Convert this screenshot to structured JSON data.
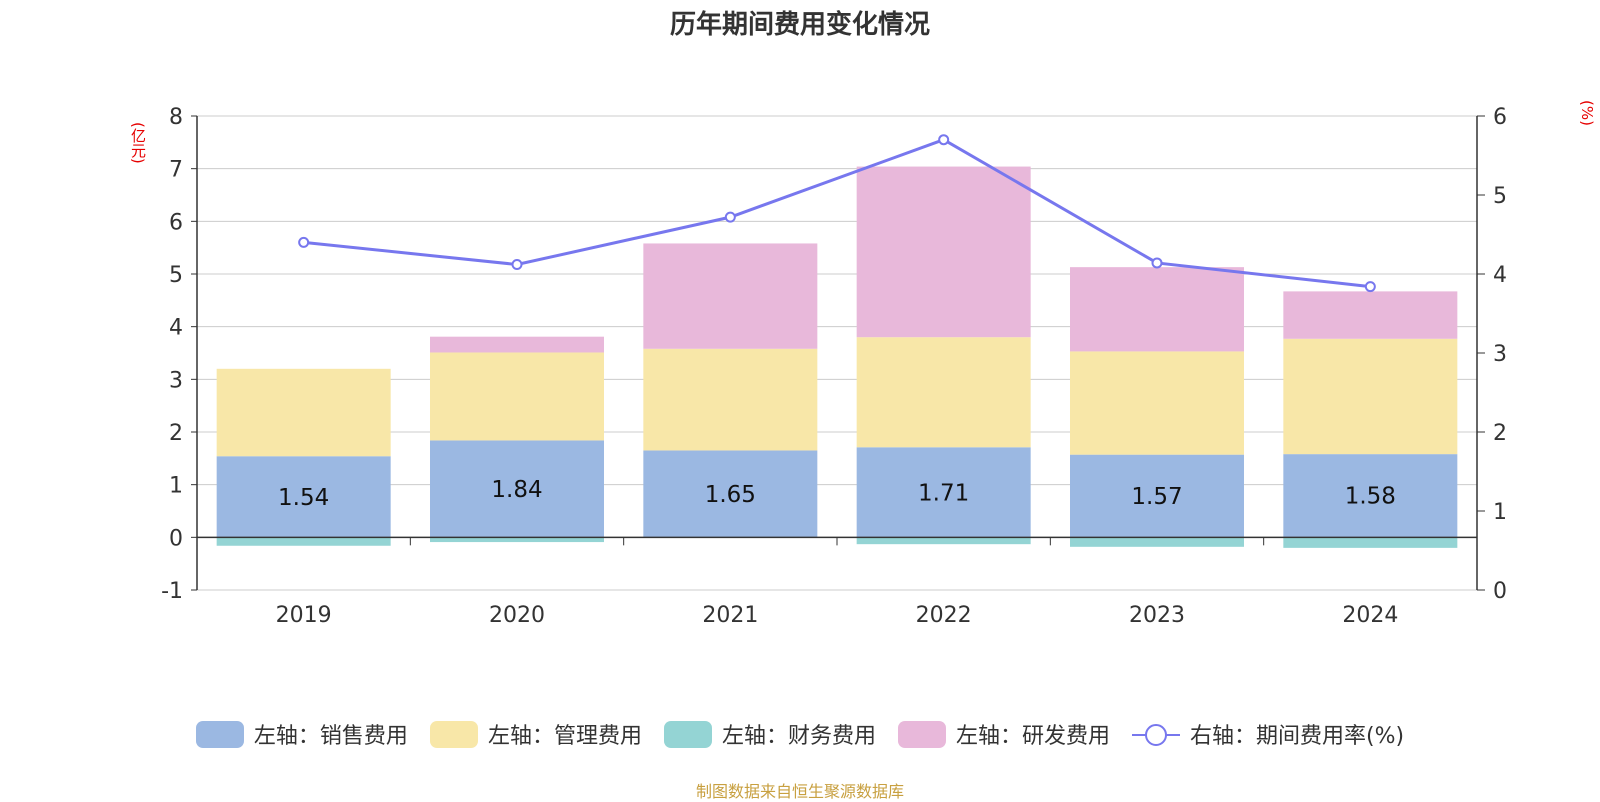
{
  "chart_data": {
    "type": "bar",
    "title": "历年期间费用变化情况",
    "left_unit": "(亿元)",
    "right_unit": "(%)",
    "categories": [
      "2019",
      "2020",
      "2021",
      "2022",
      "2023",
      "2024"
    ],
    "left_axis": {
      "min": -1,
      "max": 8,
      "ticks": [
        "8",
        "7",
        "6",
        "5",
        "4",
        "3",
        "2",
        "1",
        "0",
        "-1"
      ]
    },
    "right_axis": {
      "min": 0,
      "max": 6,
      "ticks": [
        "6",
        "5",
        "4",
        "3",
        "2",
        "1",
        "0"
      ]
    },
    "series": [
      {
        "name": "左轴：销售费用",
        "axis": "left",
        "stack": true,
        "color": "#9bb8e2",
        "values": [
          1.54,
          1.84,
          1.65,
          1.71,
          1.57,
          1.58
        ],
        "labels": [
          "1.54",
          "1.84",
          "1.65",
          "1.71",
          "1.57",
          "1.58"
        ]
      },
      {
        "name": "左轴：管理费用",
        "axis": "left",
        "stack": true,
        "color": "#f8e7a8",
        "values": [
          1.66,
          1.67,
          1.93,
          2.09,
          1.96,
          2.19
        ]
      },
      {
        "name": "左轴：财务费用",
        "axis": "left",
        "stack": true,
        "color": "#94d4d4",
        "values": [
          -0.16,
          -0.09,
          -0.01,
          -0.13,
          -0.18,
          -0.2
        ]
      },
      {
        "name": "左轴：研发费用",
        "axis": "left",
        "stack": true,
        "color": "#e8b8da",
        "values": [
          0.0,
          0.3,
          2.0,
          3.24,
          1.6,
          0.9
        ]
      },
      {
        "name": "右轴：期间费用率(%)",
        "axis": "right",
        "type": "line",
        "color": "#7777ee",
        "values": [
          4.4,
          4.12,
          4.72,
          5.7,
          4.14,
          3.84
        ]
      }
    ],
    "grid": true,
    "legend_position": "bottom"
  },
  "source_note": "制图数据来自恒生聚源数据库"
}
